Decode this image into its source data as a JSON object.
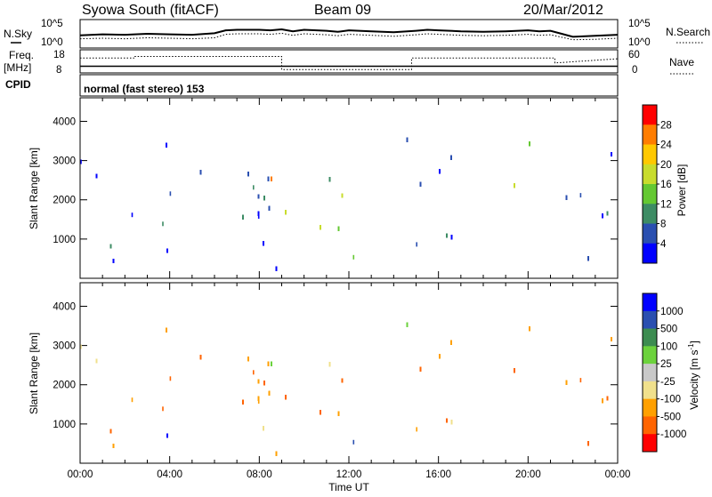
{
  "header": {
    "station": "Syowa South (fitACF)",
    "beam": "Beam 09",
    "date": "20/Mar/2012"
  },
  "small_panels": {
    "nsky_label": "N.Sky",
    "nsearch_label": "N.Search",
    "nsky_ticks": [
      "10^5",
      "10^0"
    ],
    "nsearch_ticks": [
      "10^5",
      "10^0"
    ],
    "freq_label": "Freq.",
    "freq_unit": "[MHz]",
    "freq_ticks": [
      "18",
      "8"
    ],
    "nave_label": "Nave",
    "nave_ticks": [
      "60",
      "0"
    ],
    "cpid_label": "CPID",
    "cpid_text": "normal (fast stereo) 153"
  },
  "colors": {
    "power_scale": [
      "#0000ff",
      "#2a4fb0",
      "#3d8c64",
      "#64c832",
      "#c8dc2d",
      "#ffc800",
      "#ff7d00",
      "#ff0000"
    ],
    "velocity_scale": [
      "#0000ff",
      "#2a4fb0",
      "#3c8c50",
      "#6cd23c",
      "#c8c8c8",
      "#f0e08c",
      "#ffa000",
      "#ff6400",
      "#ff0000"
    ]
  },
  "chart_data": [
    {
      "type": "line",
      "name": "noise",
      "x": [
        0,
        1,
        2,
        3,
        4,
        5,
        6,
        6.5,
        7,
        8,
        8.5,
        9,
        9.5,
        10,
        11,
        11.5,
        12,
        13,
        14,
        15,
        15.5,
        16,
        16.5,
        17,
        18,
        19,
        20,
        20.5,
        21,
        21.5,
        22,
        23,
        24
      ],
      "series": [
        {
          "name": "N.Sky",
          "style": "solid",
          "values": [
            2.2,
            2.4,
            2.3,
            2.5,
            2.4,
            2.3,
            2.6,
            3.2,
            3.3,
            3.3,
            3.2,
            3.4,
            3.0,
            3.3,
            3.1,
            2.9,
            3.2,
            3.0,
            2.8,
            3.1,
            3.3,
            3.2,
            3.1,
            3.0,
            2.9,
            3.0,
            3.2,
            3.0,
            3.1,
            2.5,
            1.9,
            2.1,
            2.3
          ]
        },
        {
          "name": "N.Search",
          "style": "dotted",
          "values": [
            1.5,
            1.6,
            1.5,
            1.7,
            1.6,
            1.5,
            1.7,
            2.4,
            2.5,
            2.5,
            2.4,
            2.6,
            2.2,
            2.5,
            2.3,
            2.1,
            2.4,
            2.2,
            2.0,
            2.3,
            2.5,
            2.4,
            2.3,
            2.2,
            2.1,
            2.2,
            2.4,
            2.2,
            2.3,
            1.8,
            1.3,
            1.4,
            1.6
          ]
        }
      ],
      "ylim": [
        0,
        5
      ],
      "xlim": [
        0,
        24
      ]
    },
    {
      "type": "line",
      "name": "frequency-nave",
      "x": [
        0,
        2.4,
        2.4,
        9.0,
        9.0,
        14.8,
        14.8,
        21.2,
        21.2,
        24
      ],
      "series": [
        {
          "name": "Freq.",
          "style": "solid",
          "values": [
            10.5,
            10.5,
            10.5,
            10.5,
            10.5,
            10.5,
            10.5,
            10.5,
            10.5,
            10.5
          ]
        },
        {
          "name": "Nave",
          "style": "dotted",
          "values": [
            40,
            40,
            45,
            45,
            5,
            5,
            40,
            40,
            25,
            38
          ]
        }
      ],
      "ylim_freq": [
        8,
        18
      ],
      "ylim_nave": [
        0,
        60
      ]
    },
    {
      "type": "heatmap",
      "name": "power",
      "title": "",
      "xlabel": "",
      "ylabel": "Slant Range [km]",
      "xlim": [
        0,
        24
      ],
      "ylim": [
        0,
        4600
      ],
      "yticks": [
        1000,
        2000,
        3000,
        4000
      ],
      "colorbar_label": "Power [dB]",
      "colorbar_ticks": [
        "28",
        "24",
        "20",
        "16",
        "12",
        "8",
        "4"
      ],
      "colorbar_range": [
        0,
        32
      ]
    },
    {
      "type": "heatmap",
      "name": "velocity",
      "title": "",
      "xlabel": "Time UT",
      "ylabel": "Slant Range [km]",
      "xlim": [
        0,
        24
      ],
      "ylim": [
        0,
        4600
      ],
      "yticks": [
        1000,
        2000,
        3000,
        4000
      ],
      "xticks": [
        "00:00",
        "04:00",
        "08:00",
        "12:00",
        "16:00",
        "20:00",
        "00:00"
      ],
      "colorbar_label": "Velocity [m s^-1]",
      "colorbar_ticks": [
        "1000",
        "500",
        "100",
        "25",
        "-25",
        "-100",
        "-500",
        "-1000"
      ]
    }
  ]
}
